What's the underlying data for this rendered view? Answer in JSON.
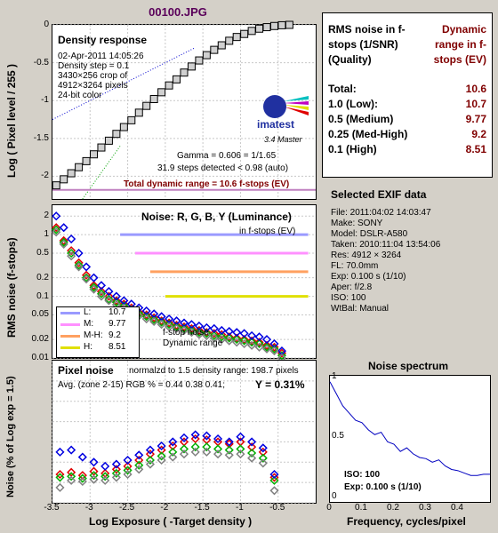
{
  "window_title": "00100.JPG",
  "panels": {
    "density": {
      "heading": "Density response",
      "info_lines": [
        "02-Apr-2011 14:05:26",
        "Density step = 0.1",
        "3430×256 crop of",
        "4912×3264 pixels",
        "24-bit color"
      ],
      "logo_text": "imatest",
      "logo_version": "3.4  Master",
      "gamma_line": "Gamma = 0.606 = 1/1.65",
      "steps_line": "31.9 steps detected < 0.98 (auto)",
      "total_dr_line": "Total dynamic range = 10.6 f-stops (EV)",
      "ylabel": "Log ( Pixel level / 255 )"
    },
    "noise": {
      "heading": "Noise: R, G, B, Y (Luminance)",
      "sub": "in f-stops (EV)",
      "ylabel": "RMS noise (f-stops)",
      "legend": [
        {
          "label": "L:",
          "value": "10.7",
          "color": "#9a9aff"
        },
        {
          "label": "M:",
          "value": "9.77",
          "color": "#ff90ff"
        },
        {
          "label": "M-H:",
          "value": "9.2",
          "color": "#ffa060"
        },
        {
          "label": "H:",
          "value": "8.51",
          "color": "#e0e000"
        }
      ],
      "annot1": "f-stop noise",
      "annot2": "Dynamic range"
    },
    "pixel": {
      "heading": "Pixel noise",
      "norm_line": "normalzd to 1.5 density range: 198.7 pixels",
      "avg_line": "Avg. (zone 2-15) RGB % = 0.44  0.38  0.41;",
      "y_line": "Y = 0.31%",
      "ylabel": "Noise (% of Log exp = 1.5)",
      "xlabel": "Log Exposure ( -Target density )"
    },
    "summary": {
      "header_left": "RMS noise in f-stops (1/SNR) (Quality)",
      "header_right": "Dynamic range in f-stops (EV)",
      "rows": [
        {
          "label": "Total:",
          "value": "10.6"
        },
        {
          "label": "1.0   (Low):",
          "value": "10.7"
        },
        {
          "label": "0.5   (Medium)",
          "value": "9.77"
        },
        {
          "label": "0.25 (Med-High)",
          "value": "9.2"
        },
        {
          "label": "0.1   (High)",
          "value": "8.51"
        }
      ]
    },
    "exif": {
      "heading": "Selected EXIF data",
      "lines": [
        "File:  2011:04:02 14:03:47",
        "Make:  SONY",
        "Model: DSLR-A580",
        "Taken:  2010:11:04 13:54:06",
        "Res:   4912 × 3264",
        "FL:  70.0mm",
        "Exp:  0.100 s  (1/10)",
        "Aper:  f/2.8",
        "ISO:   100",
        "WtBal: Manual"
      ]
    },
    "spectrum": {
      "heading": "Noise spectrum",
      "iso_line": "ISO:    100",
      "exp_line": "Exp:  0.100 s  (1/10)",
      "xlabel": "Frequency, cycles/pixel"
    }
  },
  "chart_data": [
    {
      "type": "scatter",
      "title": "Density response",
      "ylabel": "Log ( Pixel level / 255 )",
      "xlim": [
        -3.5,
        0
      ],
      "ylim": [
        -2.3,
        0
      ],
      "yticks": [
        0,
        -0.5,
        -1,
        -1.5,
        -2
      ],
      "series": [
        {
          "x": [
            -3.45,
            -3.35,
            -3.25,
            -3.15,
            -3.05,
            -2.95,
            -2.85,
            -2.75,
            -2.65,
            -2.55,
            -2.45,
            -2.35,
            -2.25,
            -2.15,
            -2.05,
            -1.95,
            -1.85,
            -1.75,
            -1.65,
            -1.55,
            -1.45,
            -1.35,
            -1.25,
            -1.15,
            -1.05,
            -0.95,
            -0.85,
            -0.75,
            -0.65,
            -0.55,
            -0.45,
            -0.35
          ],
          "y": [
            -2.12,
            -2.04,
            -1.96,
            -1.88,
            -1.8,
            -1.71,
            -1.62,
            -1.53,
            -1.44,
            -1.35,
            -1.26,
            -1.16,
            -1.07,
            -0.98,
            -0.89,
            -0.8,
            -0.72,
            -0.63,
            -0.55,
            -0.47,
            -0.4,
            -0.33,
            -0.27,
            -0.21,
            -0.16,
            -0.12,
            -0.08,
            -0.05,
            -0.03,
            -0.015,
            -0.005,
            0
          ]
        }
      ]
    },
    {
      "type": "scatter",
      "title": "Noise: R, G, B, Y (Luminance)",
      "ylabel": "RMS noise (f-stops)",
      "yscale": "log",
      "yticks": [
        2,
        1,
        0.5,
        0.2,
        0.1,
        0.05,
        0.02,
        0.01
      ],
      "ytick_labels": [
        "2",
        "1",
        "0.5",
        "0.2",
        "0.1",
        "0.05",
        "0.02",
        "0.01"
      ],
      "xlim": [
        -3.5,
        0
      ],
      "ylim": [
        0.01,
        3
      ],
      "reference_lines": [
        1,
        0.5,
        0.25,
        0.1
      ],
      "series": [
        {
          "name": "R",
          "color": "#e00000",
          "x": [
            -3.45,
            -3.35,
            -3.25,
            -3.15,
            -3.05,
            -2.95,
            -2.85,
            -2.75,
            -2.65,
            -2.55,
            -2.45,
            -2.35,
            -2.25,
            -2.15,
            -2.05,
            -1.95,
            -1.85,
            -1.75,
            -1.65,
            -1.55,
            -1.45,
            -1.35,
            -1.25,
            -1.15,
            -1.05,
            -0.95,
            -0.85,
            -0.75,
            -0.65,
            -0.55,
            -0.45
          ],
          "y": [
            1.3,
            0.8,
            0.55,
            0.35,
            0.22,
            0.15,
            0.12,
            0.1,
            0.085,
            0.075,
            0.065,
            0.055,
            0.05,
            0.045,
            0.04,
            0.037,
            0.034,
            0.032,
            0.03,
            0.028,
            0.026,
            0.025,
            0.024,
            0.022,
            0.021,
            0.02,
            0.019,
            0.018,
            0.016,
            0.015,
            0.012
          ]
        },
        {
          "name": "G",
          "color": "#00b000",
          "x": [
            -3.45,
            -3.35,
            -3.25,
            -3.15,
            -3.05,
            -2.95,
            -2.85,
            -2.75,
            -2.65,
            -2.55,
            -2.45,
            -2.35,
            -2.25,
            -2.15,
            -2.05,
            -1.95,
            -1.85,
            -1.75,
            -1.65,
            -1.55,
            -1.45,
            -1.35,
            -1.25,
            -1.15,
            -1.05,
            -0.95,
            -0.85,
            -0.75,
            -0.65,
            -0.55,
            -0.45
          ],
          "y": [
            1.2,
            0.75,
            0.5,
            0.32,
            0.2,
            0.14,
            0.11,
            0.09,
            0.08,
            0.07,
            0.06,
            0.052,
            0.047,
            0.042,
            0.038,
            0.035,
            0.032,
            0.03,
            0.028,
            0.026,
            0.025,
            0.023,
            0.022,
            0.021,
            0.02,
            0.019,
            0.018,
            0.017,
            0.015,
            0.014,
            0.011
          ]
        },
        {
          "name": "B",
          "color": "#0000e0",
          "x": [
            -3.45,
            -3.35,
            -3.25,
            -3.15,
            -3.05,
            -2.95,
            -2.85,
            -2.75,
            -2.65,
            -2.55,
            -2.45,
            -2.35,
            -2.25,
            -2.15,
            -2.05,
            -1.95,
            -1.85,
            -1.75,
            -1.65,
            -1.55,
            -1.45,
            -1.35,
            -1.25,
            -1.15,
            -1.05,
            -0.95,
            -0.85,
            -0.75,
            -0.65,
            -0.55,
            -0.45
          ],
          "y": [
            2.0,
            1.3,
            0.85,
            0.5,
            0.3,
            0.2,
            0.15,
            0.12,
            0.1,
            0.085,
            0.075,
            0.065,
            0.058,
            0.052,
            0.047,
            0.043,
            0.04,
            0.037,
            0.035,
            0.033,
            0.031,
            0.03,
            0.028,
            0.027,
            0.026,
            0.025,
            0.023,
            0.022,
            0.02,
            0.017,
            0.013
          ]
        },
        {
          "name": "Y",
          "color": "#808080",
          "x": [
            -3.45,
            -3.35,
            -3.25,
            -3.15,
            -3.05,
            -2.95,
            -2.85,
            -2.75,
            -2.65,
            -2.55,
            -2.45,
            -2.35,
            -2.25,
            -2.15,
            -2.05,
            -1.95,
            -1.85,
            -1.75,
            -1.65,
            -1.55,
            -1.45,
            -1.35,
            -1.25,
            -1.15,
            -1.05,
            -0.95,
            -0.85,
            -0.75,
            -0.65,
            -0.55,
            -0.45
          ],
          "y": [
            1.1,
            0.7,
            0.45,
            0.3,
            0.19,
            0.13,
            0.1,
            0.085,
            0.073,
            0.064,
            0.056,
            0.048,
            0.043,
            0.039,
            0.035,
            0.032,
            0.03,
            0.028,
            0.026,
            0.024,
            0.023,
            0.021,
            0.02,
            0.019,
            0.018,
            0.017,
            0.016,
            0.015,
            0.014,
            0.013,
            0.01
          ]
        }
      ]
    },
    {
      "type": "scatter",
      "title": "Pixel noise",
      "xlabel": "Log Exposure ( -Target density )",
      "ylabel": "Noise (% of Log exp = 1.5)",
      "xlim": [
        -3.5,
        0
      ],
      "ylim": [
        0,
        1.4
      ],
      "xticks": [
        -3.5,
        -3,
        -2.5,
        -2,
        -1.5,
        -1,
        -0.5
      ],
      "xtick_labels": [
        "-3.5",
        "-3",
        "-2.5",
        "-2",
        "-1.5",
        "-1",
        "-0.5"
      ],
      "yticks": [
        0,
        0.2,
        0.4,
        0.6,
        0.8,
        1,
        1.2
      ],
      "series": [
        {
          "name": "R",
          "color": "#e00000",
          "x": [
            -3.4,
            -3.25,
            -3.1,
            -2.95,
            -2.8,
            -2.65,
            -2.5,
            -2.35,
            -2.2,
            -2.05,
            -1.9,
            -1.75,
            -1.6,
            -1.45,
            -1.3,
            -1.15,
            -1.0,
            -0.85,
            -0.7,
            -0.55
          ],
          "y": [
            0.28,
            0.3,
            0.27,
            0.31,
            0.29,
            0.33,
            0.36,
            0.42,
            0.48,
            0.52,
            0.56,
            0.6,
            0.63,
            0.62,
            0.6,
            0.58,
            0.6,
            0.55,
            0.5,
            0.25
          ]
        },
        {
          "name": "G",
          "color": "#00b000",
          "x": [
            -3.4,
            -3.25,
            -3.1,
            -2.95,
            -2.8,
            -2.65,
            -2.5,
            -2.35,
            -2.2,
            -2.05,
            -1.9,
            -1.75,
            -1.6,
            -1.45,
            -1.3,
            -1.15,
            -1.0,
            -0.85,
            -0.7,
            -0.55
          ],
          "y": [
            0.25,
            0.26,
            0.24,
            0.27,
            0.26,
            0.29,
            0.32,
            0.37,
            0.42,
            0.46,
            0.5,
            0.53,
            0.55,
            0.55,
            0.53,
            0.52,
            0.53,
            0.49,
            0.44,
            0.22
          ]
        },
        {
          "name": "B",
          "color": "#0000e0",
          "x": [
            -3.4,
            -3.25,
            -3.1,
            -2.95,
            -2.8,
            -2.65,
            -2.5,
            -2.35,
            -2.2,
            -2.05,
            -1.9,
            -1.75,
            -1.6,
            -1.45,
            -1.3,
            -1.15,
            -1.0,
            -0.85,
            -0.7,
            -0.55
          ],
          "y": [
            0.5,
            0.52,
            0.45,
            0.4,
            0.36,
            0.38,
            0.42,
            0.47,
            0.52,
            0.56,
            0.6,
            0.64,
            0.67,
            0.66,
            0.63,
            0.6,
            0.65,
            0.6,
            0.54,
            0.28
          ]
        },
        {
          "name": "Y",
          "color": "#808080",
          "x": [
            -3.4,
            -3.25,
            -3.1,
            -2.95,
            -2.8,
            -2.65,
            -2.5,
            -2.35,
            -2.2,
            -2.05,
            -1.9,
            -1.75,
            -1.6,
            -1.45,
            -1.3,
            -1.15,
            -1.0,
            -0.85,
            -0.7,
            -0.55
          ],
          "y": [
            0.15,
            0.22,
            0.21,
            0.23,
            0.22,
            0.25,
            0.28,
            0.33,
            0.38,
            0.42,
            0.45,
            0.48,
            0.5,
            0.5,
            0.48,
            0.47,
            0.48,
            0.44,
            0.39,
            0.12
          ]
        }
      ]
    },
    {
      "type": "line",
      "title": "Noise spectrum",
      "xlabel": "Frequency, cycles/pixel",
      "xlim": [
        0,
        0.5
      ],
      "ylim": [
        0,
        1.05
      ],
      "xticks": [
        0,
        0.1,
        0.2,
        0.3,
        0.4
      ],
      "yticks": [
        0,
        0.5,
        1
      ],
      "series": [
        {
          "x": [
            0,
            0.02,
            0.04,
            0.06,
            0.08,
            0.1,
            0.12,
            0.14,
            0.16,
            0.18,
            0.2,
            0.22,
            0.24,
            0.26,
            0.28,
            0.3,
            0.32,
            0.34,
            0.36,
            0.38,
            0.4,
            0.42,
            0.44,
            0.46,
            0.48,
            0.5
          ],
          "y": [
            1.0,
            0.9,
            0.8,
            0.74,
            0.68,
            0.66,
            0.6,
            0.56,
            0.58,
            0.5,
            0.48,
            0.42,
            0.45,
            0.4,
            0.37,
            0.36,
            0.33,
            0.35,
            0.3,
            0.27,
            0.26,
            0.24,
            0.22,
            0.22,
            0.23,
            0.23
          ]
        }
      ]
    }
  ]
}
